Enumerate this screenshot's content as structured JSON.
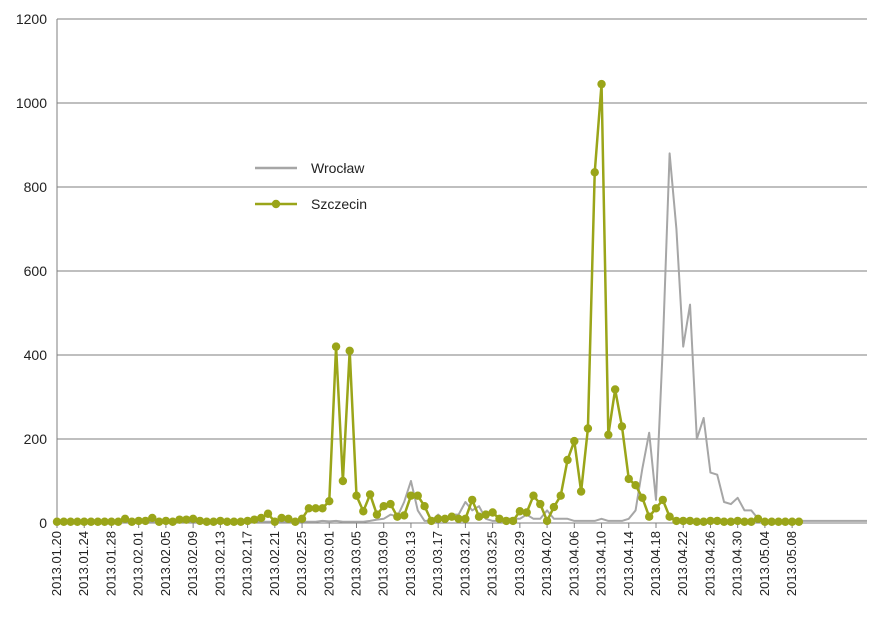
{
  "chart_data": {
    "type": "line",
    "ylim": [
      0,
      1200
    ],
    "yticks": [
      0,
      200,
      400,
      600,
      800,
      1000,
      1200
    ],
    "grid": true,
    "legend_position": "left-middle",
    "start_date": "2013.01.20",
    "end_date": "2013.05.09",
    "x_tick_labels": [
      "2013.01.20",
      "2013.01.24",
      "2013.01.28",
      "2013.02.01",
      "2013.02.05",
      "2013.02.09",
      "2013.02.13",
      "2013.02.17",
      "2013.02.21",
      "2013.02.25",
      "2013.03.01",
      "2013.03.05",
      "2013.03.09",
      "2013.03.13",
      "2013.03.17",
      "2013.03.21",
      "2013.03.25",
      "2013.03.29",
      "2013.04.02",
      "2013.04.06",
      "2013.04.10",
      "2013.04.14",
      "2013.04.18",
      "2013.04.22",
      "2013.04.26",
      "2013.04.30",
      "2013.05.04",
      "2013.05.08"
    ],
    "series": [
      {
        "name": "Wrocław",
        "color": "#a6a6a6",
        "markers": false,
        "values": [
          2,
          2,
          2,
          2,
          2,
          2,
          2,
          2,
          2,
          2,
          3,
          3,
          3,
          3,
          3,
          3,
          3,
          3,
          3,
          3,
          3,
          3,
          3,
          3,
          3,
          3,
          3,
          3,
          3,
          3,
          3,
          3,
          3,
          3,
          3,
          3,
          3,
          3,
          3,
          5,
          4,
          5,
          3,
          3,
          3,
          3,
          5,
          8,
          10,
          20,
          15,
          50,
          100,
          30,
          5,
          5,
          20,
          5,
          20,
          20,
          50,
          30,
          40,
          10,
          5,
          5,
          10,
          10,
          10,
          20,
          10,
          10,
          30,
          10,
          10,
          10,
          5,
          5,
          5,
          5,
          10,
          5,
          5,
          5,
          10,
          30,
          130,
          215,
          55,
          420,
          880,
          700,
          420,
          520,
          200,
          250,
          120,
          115,
          50,
          45,
          60,
          30,
          30,
          10,
          5,
          5,
          5,
          5,
          5,
          5,
          5,
          5,
          5,
          5,
          5,
          5,
          5,
          5,
          5,
          5
        ]
      },
      {
        "name": "Szczecin",
        "color": "#9aa519",
        "markers": true,
        "values": [
          3,
          3,
          3,
          3,
          3,
          3,
          3,
          3,
          3,
          3,
          10,
          3,
          5,
          5,
          12,
          3,
          5,
          3,
          8,
          8,
          10,
          5,
          3,
          3,
          5,
          3,
          3,
          3,
          5,
          8,
          12,
          22,
          3,
          12,
          10,
          3,
          10,
          35,
          35,
          35,
          52,
          420,
          100,
          410,
          65,
          28,
          68,
          20,
          40,
          45,
          15,
          18,
          65,
          65,
          40,
          5,
          10,
          10,
          15,
          10,
          10,
          55,
          15,
          20,
          25,
          10,
          5,
          5,
          28,
          25,
          65,
          45,
          5,
          38,
          65,
          150,
          195,
          75,
          225,
          835,
          1045,
          210,
          318,
          230,
          105,
          90,
          60,
          15,
          35,
          55,
          15,
          5,
          5,
          5,
          3,
          3,
          5,
          5,
          3,
          3,
          5,
          3,
          3,
          10,
          3,
          3,
          3,
          3,
          3,
          3
        ]
      }
    ]
  }
}
